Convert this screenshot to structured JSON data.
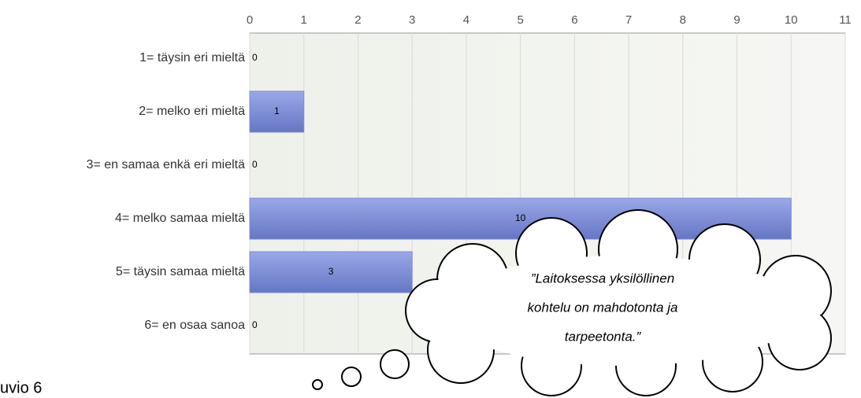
{
  "chart_data": {
    "type": "hbar",
    "categories": [
      "1= täysin eri mieltä",
      "2= melko eri mieltä",
      "3= en samaa enkä eri mieltä",
      "4= melko samaa mieltä",
      "5= täysin samaa mieltä",
      "6= en osaa sanoa"
    ],
    "values": [
      0,
      1,
      0,
      10,
      3,
      0
    ],
    "color": "#7b8bd6",
    "xlim": [
      0,
      11
    ],
    "xticks": [
      0,
      1,
      2,
      3,
      4,
      5,
      6,
      7,
      8,
      9,
      10,
      11
    ],
    "grid": true,
    "annotation": [
      "”Laitoksessa yksilöllinen",
      "kohtelu on mahdotonta ja",
      "tarpeetonta.”"
    ],
    "caption": "uvio 6"
  }
}
